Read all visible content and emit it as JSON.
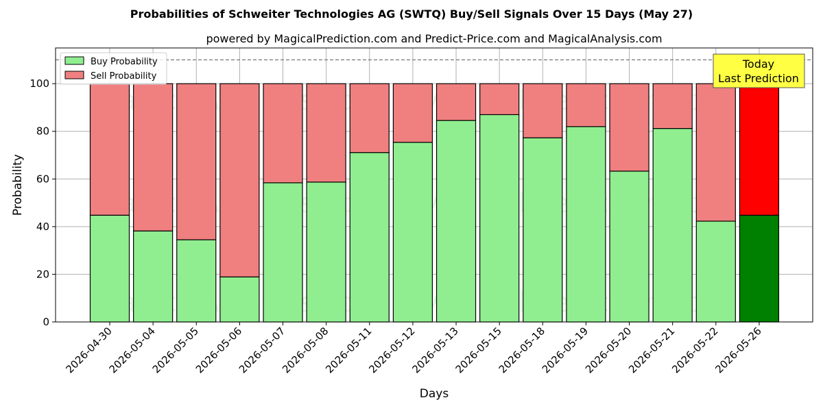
{
  "chart_data": {
    "type": "bar",
    "stacked": true,
    "title": "Probabilities of Schweiter Technologies AG (SWTQ) Buy/Sell Signals Over 15 Days (May 27)",
    "subtitle": "powered by MagicalPrediction.com and Predict-Price.com and MagicalAnalysis.com",
    "xlabel": "Days",
    "ylabel": "Probability",
    "ylim": [
      0,
      115
    ],
    "yticks": [
      0,
      20,
      40,
      60,
      80,
      100
    ],
    "grid": true,
    "legend_position": "top-left",
    "reference_line": 110,
    "categories": [
      "2026-04-30",
      "2026-05-04",
      "2026-05-05",
      "2026-05-06",
      "2026-05-07",
      "2026-05-08",
      "2026-05-11",
      "2026-05-12",
      "2026-05-13",
      "2026-05-15",
      "2026-05-18",
      "2026-05-19",
      "2026-05-20",
      "2026-05-21",
      "2026-05-22",
      "2026-05-26"
    ],
    "series": [
      {
        "name": "Buy Probability",
        "color": "#90EE90",
        "highlight_color": "#008000",
        "values": [
          44.8,
          38.2,
          34.5,
          18.9,
          58.4,
          58.7,
          71.1,
          75.4,
          84.6,
          87.0,
          77.3,
          82.0,
          63.3,
          81.2,
          42.3,
          44.8
        ]
      },
      {
        "name": "Sell Probability",
        "color": "#F08080",
        "highlight_color": "#FF0000",
        "values": [
          55.2,
          61.8,
          65.5,
          81.1,
          41.6,
          41.3,
          28.9,
          24.6,
          15.4,
          13.0,
          22.7,
          18.0,
          36.7,
          18.8,
          57.7,
          55.2
        ]
      }
    ],
    "annotation": {
      "line1": "Today",
      "line2": "Last Prediction",
      "color": "#FFFF44"
    },
    "watermarks": [
      "MagicalAnalysis.com",
      "MagicalPrediction.com"
    ]
  }
}
